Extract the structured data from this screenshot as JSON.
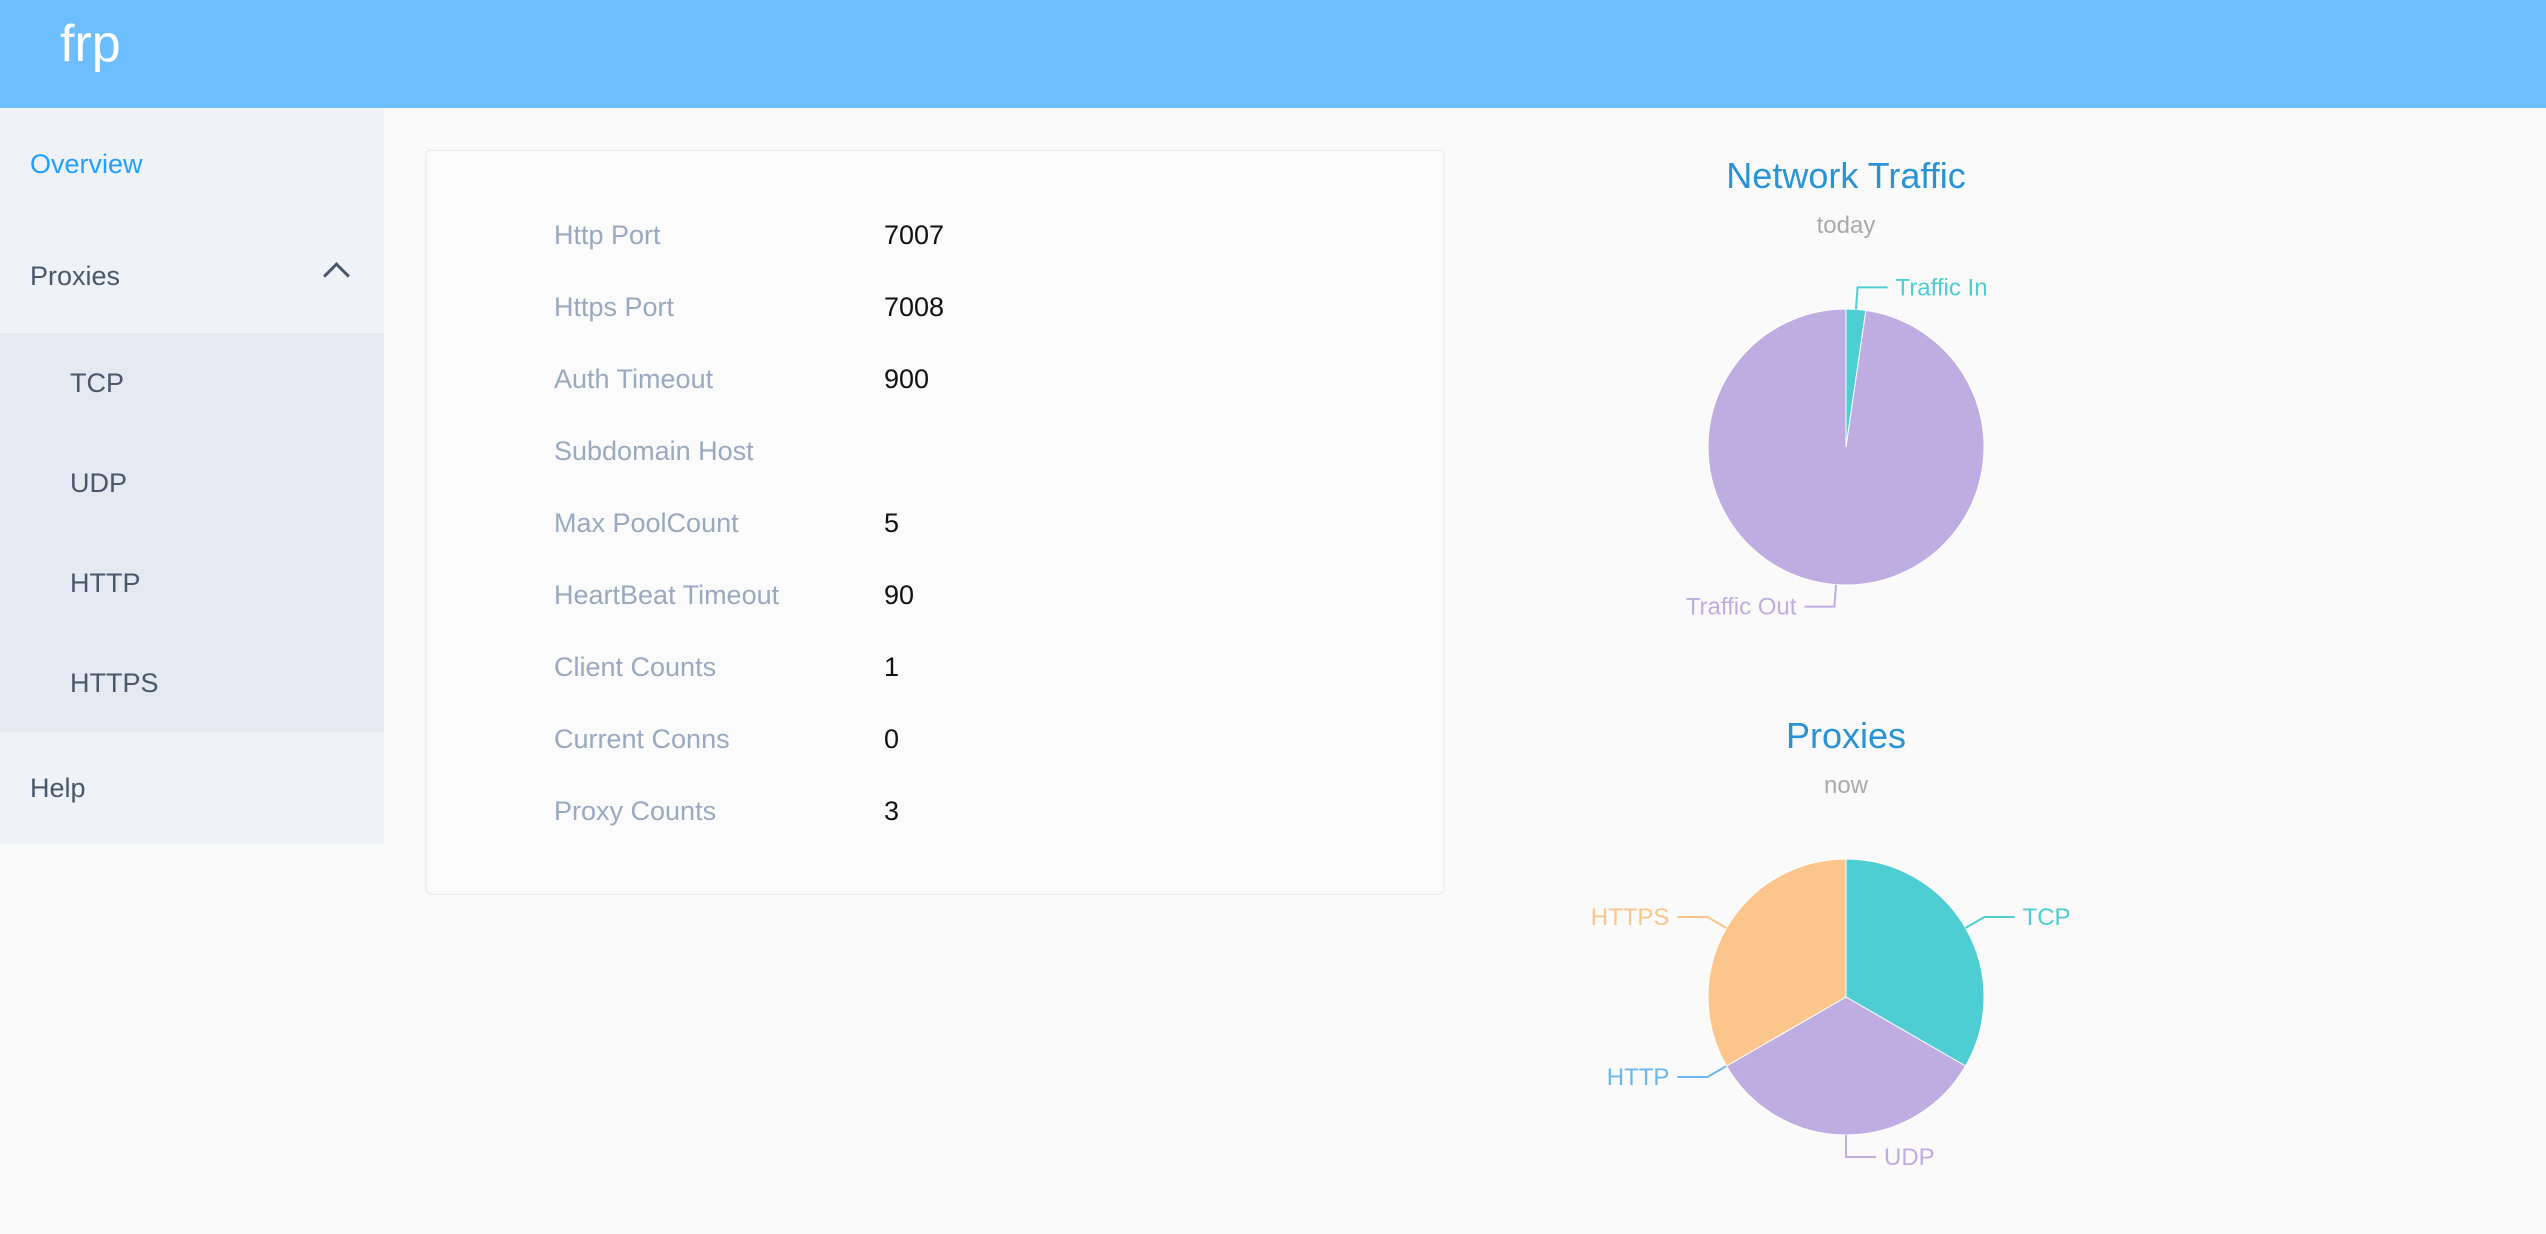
{
  "header": {
    "brand": "frp"
  },
  "sidebar": {
    "items": [
      {
        "label": "Overview",
        "active": true
      },
      {
        "label": "Proxies",
        "expanded": true,
        "icon": "chevron-up-icon"
      },
      {
        "label": "TCP"
      },
      {
        "label": "UDP"
      },
      {
        "label": "HTTP"
      },
      {
        "label": "HTTPS"
      },
      {
        "label": "Help"
      }
    ]
  },
  "server_info": [
    {
      "label": "Http Port",
      "value": "7007"
    },
    {
      "label": "Https Port",
      "value": "7008"
    },
    {
      "label": "Auth Timeout",
      "value": "900"
    },
    {
      "label": "Subdomain Host",
      "value": ""
    },
    {
      "label": "Max PoolCount",
      "value": "5"
    },
    {
      "label": "HeartBeat Timeout",
      "value": "90"
    },
    {
      "label": "Client Counts",
      "value": "1"
    },
    {
      "label": "Current Conns",
      "value": "0"
    },
    {
      "label": "Proxy Counts",
      "value": "3"
    }
  ],
  "chart_data": [
    {
      "type": "pie",
      "title": "Network Traffic",
      "subtitle": "today",
      "categories": [
        "Traffic In",
        "Traffic Out"
      ],
      "values": [
        2.3,
        97.7
      ],
      "colors": [
        "#4ecdd2",
        "#bfade2"
      ]
    },
    {
      "type": "pie",
      "title": "Proxies",
      "subtitle": "now",
      "categories": [
        "TCP",
        "UDP",
        "HTTP",
        "HTTPS"
      ],
      "values": [
        1,
        1,
        0,
        1
      ],
      "colors": [
        "#4ecdd2",
        "#bfade2",
        "#6ab7f0",
        "#fbc58b"
      ]
    }
  ],
  "colors": {
    "header": "#6dbefe",
    "active": "#20a0ff",
    "chart_title": "#2a93d5"
  }
}
